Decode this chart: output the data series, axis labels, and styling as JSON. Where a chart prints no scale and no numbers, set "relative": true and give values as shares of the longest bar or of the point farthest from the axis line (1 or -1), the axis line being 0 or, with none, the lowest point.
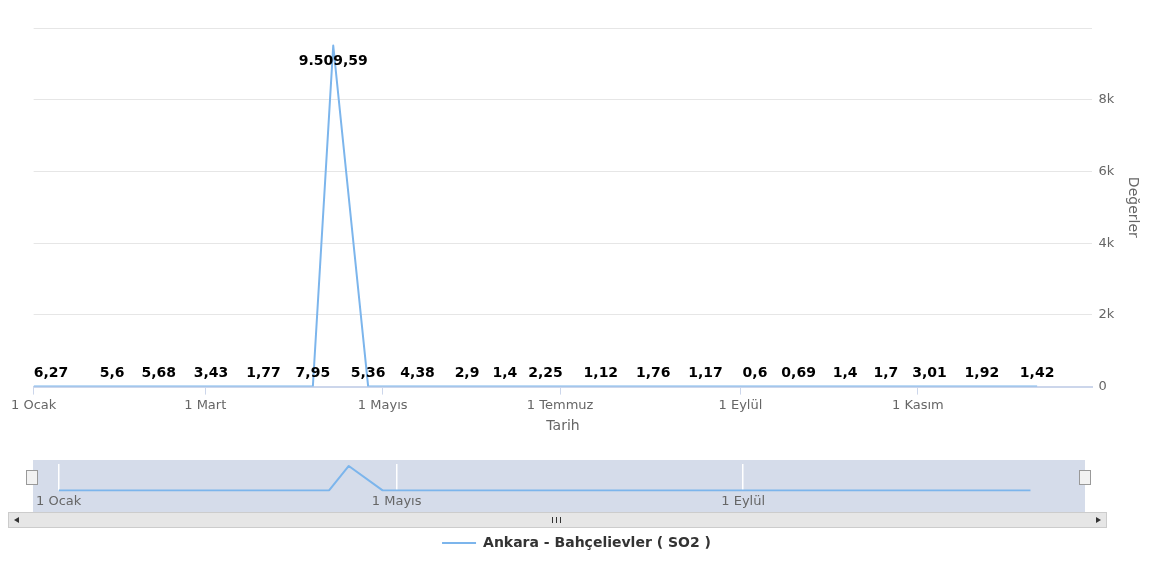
{
  "chart_data": [
    {
      "type": "line",
      "xlabel": "Tarih",
      "ylabel": "Değerler",
      "x": [
        "--01-01",
        "--01-28",
        "--02-13",
        "--03-03",
        "--03-21",
        "--04-07",
        "--04-14",
        "--04-26",
        "--05-13",
        "--05-30",
        "--06-12",
        "--06-26",
        "--07-15",
        "--08-02",
        "--08-20",
        "--09-06",
        "--09-21",
        "--10-07",
        "--10-21",
        "--11-05",
        "--11-23",
        "--12-12"
      ],
      "series": [
        {
          "name": "Ankara - Bahçelievler ( SO2 )",
          "color": "#7cb5ec",
          "values": [
            6.27,
            5.6,
            5.68,
            3.43,
            1.77,
            7.95,
            9509.59,
            5.36,
            4.38,
            2.9,
            1.4,
            2.25,
            1.12,
            1.76,
            1.17,
            0.6,
            0.69,
            1.4,
            1.7,
            3.01,
            1.92,
            1.42
          ],
          "value_labels": [
            "6,27",
            "5,6",
            "5,68",
            "3,43",
            "1,77",
            "7,95",
            "9.509,59",
            "5,36",
            "4,38",
            "2,9",
            "1,4",
            "2,25",
            "1,12",
            "1,76",
            "1,17",
            "0,6",
            "0,69",
            "1,4",
            "1,7",
            "3,01",
            "1,92",
            "1,42"
          ]
        }
      ],
      "xlim": [
        "--01-01",
        "--12-31"
      ],
      "xticks": [
        {
          "value": "--01-01",
          "label": "1 Ocak"
        },
        {
          "value": "--03-01",
          "label": "1 Mart"
        },
        {
          "value": "--05-01",
          "label": "1 Mayıs"
        },
        {
          "value": "--07-01",
          "label": "1 Temmuz"
        },
        {
          "value": "--09-01",
          "label": "1 Eylül"
        },
        {
          "value": "--11-01",
          "label": "1 Kasım"
        }
      ],
      "ylim": [
        0,
        10000
      ],
      "yticks": [
        0,
        {
          "value": 2000,
          "label": "2k"
        },
        {
          "value": 4000,
          "label": "4k"
        },
        {
          "value": 6000,
          "label": "6k"
        },
        {
          "value": 8000,
          "label": "8k"
        },
        {
          "value": 10000,
          "label": null
        }
      ],
      "grid": "y",
      "legend": "bottom",
      "marker": "none",
      "line_style": "solid"
    },
    {
      "type": "line",
      "relative": true,
      "x": [
        "--01-01",
        "--01-28",
        "--02-13",
        "--03-03",
        "--03-21",
        "--04-07",
        "--04-14",
        "--04-26",
        "--05-13",
        "--05-30",
        "--06-12",
        "--06-26",
        "--07-15",
        "--08-02",
        "--08-20",
        "--09-06",
        "--09-21",
        "--10-07",
        "--10-21",
        "--11-05",
        "--11-23",
        "--12-12"
      ],
      "series": [
        {
          "color": "#7cb5ec",
          "values": [
            0,
            0,
            0,
            0,
            0,
            0,
            1,
            0,
            0,
            0,
            0,
            0,
            0,
            0,
            0,
            0,
            0,
            0,
            0,
            0,
            0,
            0
          ]
        }
      ],
      "xlim": [
        "--01-01",
        "--12-31"
      ],
      "xticks": [
        {
          "value": "--01-01",
          "label": "1 Ocak"
        },
        {
          "value": "--05-01",
          "label": "1 Mayıs"
        },
        {
          "value": "--09-01",
          "label": "1 Eylül"
        }
      ],
      "grid": "x",
      "legend": false,
      "marker": "none",
      "line_style": "solid",
      "tick_labels": "x"
    }
  ]
}
